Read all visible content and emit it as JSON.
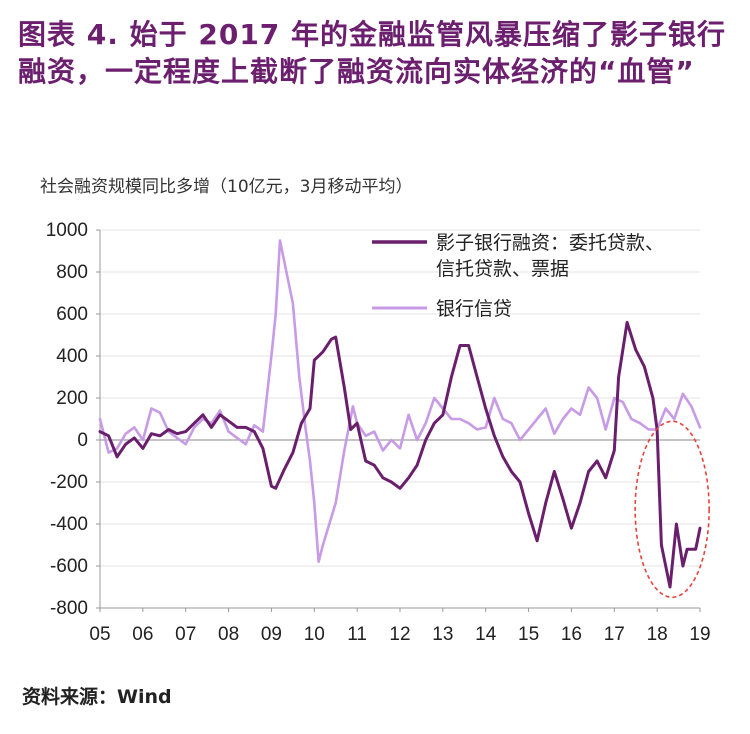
{
  "title": "图表  4. 始于 2017 年的金融监管风暴压缩了影子银行融资，一定程度上截断了融资流向实体经济的“血管”",
  "subtitle": "社会融资规模同比多增（10亿元，3月移动平均）",
  "source": "资料来源：Wind",
  "colors": {
    "shadow": "#6a1f6c",
    "bank": "#c79be6",
    "highlight": "#e8433b",
    "title": "#6b1f6e"
  },
  "chart_data": {
    "type": "line",
    "title": "社会融资规模同比多增（10亿元，3月移动平均）",
    "x_tick_labels": [
      "05",
      "06",
      "07",
      "08",
      "09",
      "10",
      "11",
      "12",
      "13",
      "14",
      "15",
      "16",
      "17",
      "18",
      "19"
    ],
    "y_tick_labels": [
      "1000",
      "800",
      "600",
      "400",
      "200",
      "0",
      "-200",
      "-400",
      "-600",
      "-800"
    ],
    "xlim": [
      2005,
      2019
    ],
    "ylim": [
      -800,
      1000
    ],
    "legend_position": "top-right",
    "annotation": "dashed red ellipse around 2018 shadow-bank decline",
    "series": [
      {
        "name": "影子银行融资：委托贷款、信托贷款、票据",
        "x": [
          2005.0,
          2005.2,
          2005.4,
          2005.6,
          2005.8,
          2006.0,
          2006.2,
          2006.4,
          2006.6,
          2006.8,
          2007.0,
          2007.2,
          2007.4,
          2007.6,
          2007.8,
          2008.0,
          2008.2,
          2008.4,
          2008.6,
          2008.8,
          2009.0,
          2009.1,
          2009.3,
          2009.5,
          2009.7,
          2009.9,
          2010.0,
          2010.2,
          2010.4,
          2010.5,
          2010.7,
          2010.85,
          2011.0,
          2011.2,
          2011.4,
          2011.6,
          2011.8,
          2012.0,
          2012.2,
          2012.4,
          2012.6,
          2012.8,
          2013.0,
          2013.2,
          2013.4,
          2013.6,
          2013.8,
          2014.0,
          2014.2,
          2014.4,
          2014.6,
          2014.8,
          2015.0,
          2015.2,
          2015.4,
          2015.6,
          2015.8,
          2016.0,
          2016.2,
          2016.4,
          2016.6,
          2016.8,
          2017.0,
          2017.1,
          2017.3,
          2017.5,
          2017.7,
          2017.9,
          2018.0,
          2018.1,
          2018.2,
          2018.3,
          2018.45,
          2018.6,
          2018.7,
          2018.9,
          2019.0
        ],
        "y": [
          40,
          20,
          -80,
          -20,
          10,
          -40,
          30,
          20,
          50,
          30,
          40,
          80,
          120,
          60,
          120,
          90,
          60,
          60,
          40,
          -40,
          -220,
          -230,
          -140,
          -60,
          80,
          150,
          380,
          420,
          480,
          490,
          250,
          50,
          80,
          -100,
          -120,
          -180,
          -200,
          -230,
          -180,
          -120,
          0,
          80,
          120,
          300,
          450,
          450,
          300,
          150,
          20,
          -80,
          -150,
          -200,
          -350,
          -480,
          -300,
          -150,
          -280,
          -420,
          -300,
          -150,
          -100,
          -180,
          -50,
          300,
          560,
          430,
          350,
          200,
          50,
          -500,
          -600,
          -700,
          -400,
          -600,
          -520,
          -520,
          -420
        ]
      },
      {
        "name": "银行信贷",
        "x": [
          2005.0,
          2005.2,
          2005.4,
          2005.6,
          2005.8,
          2006.0,
          2006.2,
          2006.4,
          2006.6,
          2006.8,
          2007.0,
          2007.2,
          2007.4,
          2007.6,
          2007.8,
          2008.0,
          2008.2,
          2008.4,
          2008.6,
          2008.8,
          2009.0,
          2009.1,
          2009.2,
          2009.35,
          2009.5,
          2009.65,
          2009.8,
          2009.9,
          2010.0,
          2010.1,
          2010.2,
          2010.35,
          2010.5,
          2010.7,
          2010.9,
          2011.0,
          2011.2,
          2011.4,
          2011.6,
          2011.8,
          2012.0,
          2012.2,
          2012.4,
          2012.6,
          2012.8,
          2013.0,
          2013.2,
          2013.4,
          2013.6,
          2013.8,
          2014.0,
          2014.2,
          2014.4,
          2014.6,
          2014.8,
          2015.0,
          2015.2,
          2015.4,
          2015.6,
          2015.8,
          2016.0,
          2016.2,
          2016.4,
          2016.6,
          2016.8,
          2017.0,
          2017.2,
          2017.4,
          2017.6,
          2017.8,
          2018.0,
          2018.2,
          2018.4,
          2018.6,
          2018.8,
          2019.0
        ],
        "y": [
          100,
          -60,
          -40,
          30,
          60,
          0,
          150,
          130,
          40,
          10,
          -20,
          60,
          100,
          80,
          140,
          40,
          10,
          -20,
          70,
          40,
          400,
          600,
          950,
          800,
          650,
          300,
          50,
          -100,
          -300,
          -580,
          -500,
          -400,
          -300,
          -50,
          160,
          80,
          20,
          40,
          -50,
          0,
          -40,
          120,
          0,
          80,
          200,
          150,
          100,
          100,
          80,
          50,
          60,
          200,
          100,
          80,
          0,
          50,
          100,
          150,
          30,
          100,
          150,
          120,
          250,
          200,
          50,
          200,
          180,
          100,
          80,
          50,
          50,
          150,
          100,
          220,
          160,
          60
        ]
      }
    ]
  }
}
